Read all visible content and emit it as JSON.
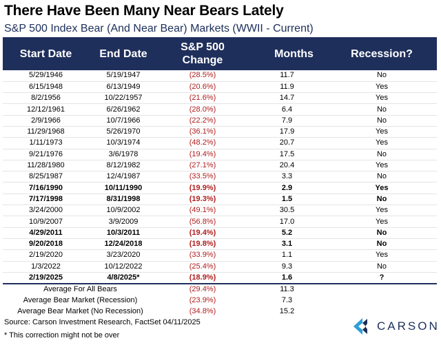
{
  "title": "There Have Been Many Near Bears Lately",
  "subtitle": "S&P 500 Index Bear (And Near Bear) Markets (WWII - Current)",
  "headers": {
    "start": "Start Date",
    "end": "End Date",
    "change_line1": "S&P 500",
    "change_line2": "Change",
    "months": "Months",
    "recession": "Recession?"
  },
  "rows": [
    {
      "start": "5/29/1946",
      "end": "5/19/1947",
      "change": "(28.5%)",
      "months": "11.7",
      "recession": "No",
      "bold": false
    },
    {
      "start": "6/15/1948",
      "end": "6/13/1949",
      "change": "(20.6%)",
      "months": "11.9",
      "recession": "Yes",
      "bold": false
    },
    {
      "start": "8/2/1956",
      "end": "10/22/1957",
      "change": "(21.6%)",
      "months": "14.7",
      "recession": "Yes",
      "bold": false
    },
    {
      "start": "12/12/1961",
      "end": "6/26/1962",
      "change": "(28.0%)",
      "months": "6.4",
      "recession": "No",
      "bold": false
    },
    {
      "start": "2/9/1966",
      "end": "10/7/1966",
      "change": "(22.2%)",
      "months": "7.9",
      "recession": "No",
      "bold": false
    },
    {
      "start": "11/29/1968",
      "end": "5/26/1970",
      "change": "(36.1%)",
      "months": "17.9",
      "recession": "Yes",
      "bold": false
    },
    {
      "start": "1/11/1973",
      "end": "10/3/1974",
      "change": "(48.2%)",
      "months": "20.7",
      "recession": "Yes",
      "bold": false
    },
    {
      "start": "9/21/1976",
      "end": "3/6/1978",
      "change": "(19.4%)",
      "months": "17.5",
      "recession": "No",
      "bold": false
    },
    {
      "start": "11/28/1980",
      "end": "8/12/1982",
      "change": "(27.1%)",
      "months": "20.4",
      "recession": "Yes",
      "bold": false
    },
    {
      "start": "8/25/1987",
      "end": "12/4/1987",
      "change": "(33.5%)",
      "months": "3.3",
      "recession": "No",
      "bold": false
    },
    {
      "start": "7/16/1990",
      "end": "10/11/1990",
      "change": "(19.9%)",
      "months": "2.9",
      "recession": "Yes",
      "bold": true
    },
    {
      "start": "7/17/1998",
      "end": "8/31/1998",
      "change": "(19.3%)",
      "months": "1.5",
      "recession": "No",
      "bold": true
    },
    {
      "start": "3/24/2000",
      "end": "10/9/2002",
      "change": "(49.1%)",
      "months": "30.5",
      "recession": "Yes",
      "bold": false
    },
    {
      "start": "10/9/2007",
      "end": "3/9/2009",
      "change": "(56.8%)",
      "months": "17.0",
      "recession": "Yes",
      "bold": false
    },
    {
      "start": "4/29/2011",
      "end": "10/3/2011",
      "change": "(19.4%)",
      "months": "5.2",
      "recession": "No",
      "bold": true
    },
    {
      "start": "9/20/2018",
      "end": "12/24/2018",
      "change": "(19.8%)",
      "months": "3.1",
      "recession": "No",
      "bold": true
    },
    {
      "start": "2/19/2020",
      "end": "3/23/2020",
      "change": "(33.9%)",
      "months": "1.1",
      "recession": "Yes",
      "bold": false
    },
    {
      "start": "1/3/2022",
      "end": "10/12/2022",
      "change": "(25.4%)",
      "months": "9.3",
      "recession": "No",
      "bold": false
    },
    {
      "start": "2/19/2025",
      "end": "4/8/2025*",
      "change": "(18.9%)",
      "months": "1.6",
      "recession": "?",
      "bold": true
    }
  ],
  "averages": [
    {
      "label": "Average For All Bears",
      "change": "(29.4%)",
      "months": "11.3"
    },
    {
      "label": "Average Bear Market (Recession)",
      "change": "(23.9%)",
      "months": "7.3"
    },
    {
      "label": "Average Bear Market (No Recession)",
      "change": "(34.8%)",
      "months": "15.2"
    }
  ],
  "source": "Source: Carson Investment Research, FactSet 04/11/2025",
  "note": "* This correction might not be over",
  "logo": {
    "text": "CARSON",
    "icon": "carson-logo-icon"
  },
  "colors": {
    "header_bg": "#1f2f5c",
    "negative": "#b01c1c",
    "brand": "#1c2e5a",
    "logo_accent": "#2b9ed8"
  }
}
